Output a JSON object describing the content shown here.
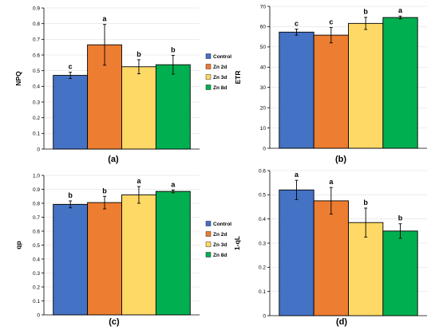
{
  "colors": {
    "Control": "#4472c4",
    "Zn 2d": "#ed7d31",
    "Zn 3d": "#ffd966",
    "Zn 8d": "#00b050"
  },
  "chart_data": [
    {
      "type": "bar",
      "panel": "(a)",
      "ylabel": "NPQ",
      "ylim": [
        0,
        0.9
      ],
      "yticks": [
        0,
        0.1,
        0.2,
        0.3,
        0.4,
        0.5,
        0.6,
        0.7,
        0.8,
        0.9
      ],
      "grid": true,
      "legend": "right",
      "categories": [
        "Control",
        "Zn 2d",
        "Zn 3d",
        "Zn 8d"
      ],
      "values": [
        0.47,
        0.665,
        0.525,
        0.538
      ],
      "errors": [
        0.02,
        0.13,
        0.045,
        0.06
      ],
      "letters": [
        "c",
        "a",
        "b",
        "b"
      ]
    },
    {
      "type": "bar",
      "panel": "(b)",
      "ylabel": "ETR",
      "ylim": [
        0,
        70
      ],
      "yticks": [
        0,
        10,
        20,
        30,
        40,
        50,
        60,
        70
      ],
      "grid": true,
      "legend": "none",
      "categories": [
        "Control",
        "Zn 2d",
        "Zn 3d",
        "Zn 8d"
      ],
      "values": [
        57.3,
        55.8,
        61.6,
        64.5
      ],
      "errors": [
        1.5,
        3.8,
        3.0,
        0.7
      ],
      "letters": [
        "c",
        "c",
        "b",
        "a"
      ]
    },
    {
      "type": "bar",
      "panel": "(c)",
      "ylabel": "qp",
      "ylim": [
        0,
        1.0
      ],
      "yticks": [
        0,
        0.1,
        0.2,
        0.3,
        0.4,
        0.5,
        0.6,
        0.7,
        0.8,
        0.9,
        1.0
      ],
      "grid": true,
      "legend": "right",
      "categories": [
        "Control",
        "Zn 2d",
        "Zn 3d",
        "Zn 8d"
      ],
      "values": [
        0.792,
        0.805,
        0.86,
        0.885
      ],
      "errors": [
        0.025,
        0.045,
        0.06,
        0.01
      ],
      "letters": [
        "b",
        "b",
        "a",
        "a"
      ]
    },
    {
      "type": "bar",
      "panel": "(d)",
      "ylabel": "1-qL",
      "ylim": [
        0,
        0.6
      ],
      "yticks": [
        0,
        0.1,
        0.2,
        0.3,
        0.4,
        0.5,
        0.6
      ],
      "grid": true,
      "legend": "none",
      "categories": [
        "Control",
        "Zn 2d",
        "Zn 3d",
        "Zn 8d"
      ],
      "values": [
        0.52,
        0.475,
        0.385,
        0.35
      ],
      "errors": [
        0.04,
        0.055,
        0.06,
        0.03
      ],
      "letters": [
        "a",
        "a",
        "b",
        "b"
      ]
    }
  ]
}
